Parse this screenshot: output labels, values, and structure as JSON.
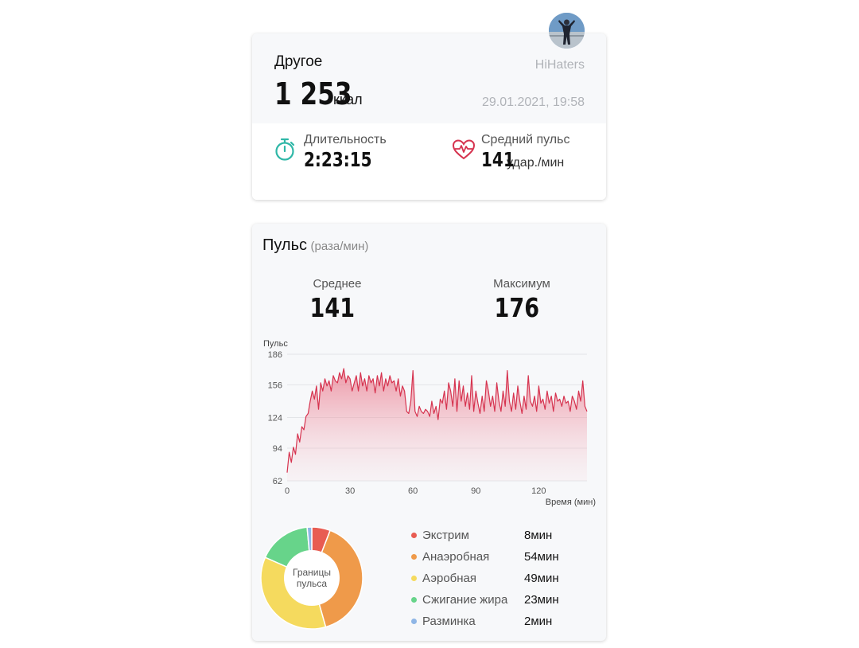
{
  "workout": {
    "type": "Другое",
    "calories": "1 253",
    "calories_unit": "ккал",
    "user": "HiHaters",
    "datetime": "29.01.2021, 19:58",
    "duration_label": "Длительность",
    "duration": "2:23:15",
    "avg_pulse_label": "Средний пульс",
    "avg_pulse": "141",
    "avg_pulse_unit": "удар./мин"
  },
  "pulse": {
    "title": "Пульс",
    "unit": "(раза/мин)",
    "avg_label": "Среднее",
    "avg_value": "141",
    "max_label": "Максимум",
    "max_value": "176"
  },
  "chart_data": [
    {
      "type": "area",
      "ylabel": "Пульс",
      "xlabel": "Время (мин)",
      "yticks": [
        62,
        94,
        124,
        156,
        186
      ],
      "xticks": [
        0,
        30,
        60,
        90,
        120
      ],
      "xlim": [
        0,
        143
      ],
      "ylim": [
        62,
        186
      ],
      "grid": true,
      "color": "#d6334f",
      "x": [
        0,
        1,
        2,
        3,
        4,
        5,
        6,
        7,
        8,
        9,
        10,
        11,
        12,
        13,
        14,
        15,
        16,
        17,
        18,
        19,
        20,
        21,
        22,
        23,
        24,
        25,
        26,
        27,
        28,
        29,
        30,
        31,
        32,
        33,
        34,
        35,
        36,
        37,
        38,
        39,
        40,
        41,
        42,
        43,
        44,
        45,
        46,
        47,
        48,
        49,
        50,
        51,
        52,
        53,
        54,
        55,
        56,
        57,
        58,
        59,
        60,
        61,
        62,
        63,
        64,
        65,
        66,
        67,
        68,
        69,
        70,
        71,
        72,
        73,
        74,
        75,
        76,
        77,
        78,
        79,
        80,
        81,
        82,
        83,
        84,
        85,
        86,
        87,
        88,
        89,
        90,
        91,
        92,
        93,
        94,
        95,
        96,
        97,
        98,
        99,
        100,
        101,
        102,
        103,
        104,
        105,
        106,
        107,
        108,
        109,
        110,
        111,
        112,
        113,
        114,
        115,
        116,
        117,
        118,
        119,
        120,
        121,
        122,
        123,
        124,
        125,
        126,
        127,
        128,
        129,
        130,
        131,
        132,
        133,
        134,
        135,
        136,
        137,
        138,
        139,
        140,
        141,
        142,
        143
      ],
      "y": [
        70,
        90,
        80,
        95,
        88,
        108,
        100,
        115,
        112,
        125,
        128,
        140,
        150,
        142,
        155,
        132,
        158,
        150,
        162,
        155,
        160,
        150,
        165,
        160,
        158,
        168,
        162,
        172,
        158,
        165,
        162,
        150,
        158,
        165,
        150,
        168,
        155,
        162,
        150,
        165,
        158,
        162,
        148,
        165,
        155,
        168,
        150,
        162,
        155,
        165,
        158,
        160,
        150,
        162,
        145,
        155,
        150,
        130,
        128,
        140,
        170,
        130,
        125,
        135,
        130,
        128,
        132,
        130,
        125,
        140,
        128,
        135,
        122,
        142,
        138,
        150,
        132,
        158,
        150,
        135,
        162,
        130,
        160,
        140,
        155,
        135,
        148,
        132,
        165,
        130,
        150,
        138,
        128,
        145,
        130,
        160,
        150,
        135,
        145,
        130,
        158,
        140,
        130,
        150,
        135,
        170,
        140,
        130,
        148,
        132,
        155,
        140,
        128,
        145,
        132,
        165,
        140,
        135,
        145,
        130,
        155,
        138,
        142,
        132,
        150,
        138,
        145,
        130,
        148,
        140,
        142,
        135,
        145,
        138,
        140,
        130,
        145,
        140,
        132,
        150,
        140,
        160,
        135,
        130
      ]
    },
    {
      "type": "pie",
      "title": "Границы пульса",
      "categories": [
        "Экстрим",
        "Анаэробная",
        "Аэробная",
        "Сжигание жира",
        "Разминка"
      ],
      "values": [
        8,
        54,
        49,
        23,
        2
      ],
      "labels": [
        "8мин",
        "54мин",
        "49мин",
        "23мин",
        "2мин"
      ],
      "colors": [
        "#e85c52",
        "#ef9a4a",
        "#f5da5e",
        "#67d48a",
        "#8fb6e6"
      ]
    }
  ]
}
